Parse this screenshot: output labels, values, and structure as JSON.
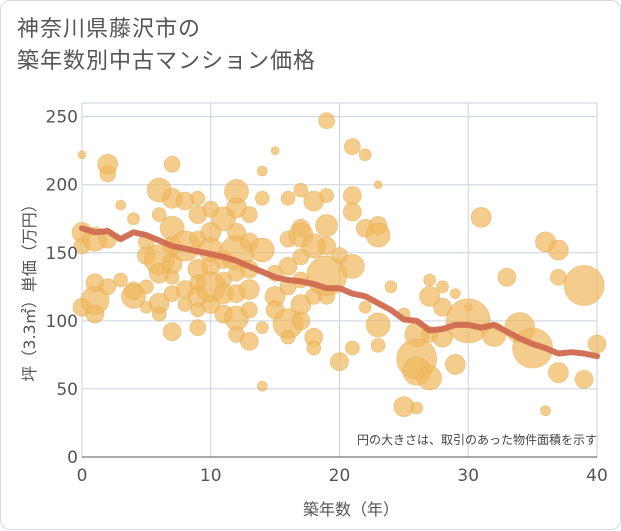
{
  "title_line1": "神奈川県藤沢市の",
  "title_line2": "築年数別中古マンション価格",
  "chart_data": {
    "type": "scatter",
    "xlabel": "築年数（年）",
    "ylabel": "坪（3.3㎡）単価（万円）",
    "xlim": [
      0,
      40
    ],
    "ylim": [
      0,
      260
    ],
    "xticks": [
      "0",
      "10",
      "20",
      "30",
      "40"
    ],
    "yticks": [
      "0",
      "50",
      "100",
      "150",
      "200",
      "250"
    ],
    "annotation": "円の大きさは、取引のあった物件面積を示す",
    "grid": true,
    "bubble_color": "#f0b860",
    "line_color": "#d06a50",
    "trend": {
      "x": [
        0,
        1,
        2,
        3,
        4,
        5,
        6,
        7,
        8,
        9,
        10,
        11,
        12,
        13,
        14,
        15,
        16,
        17,
        18,
        19,
        20,
        21,
        22,
        23,
        24,
        25,
        26,
        27,
        28,
        29,
        30,
        31,
        32,
        33,
        34,
        35,
        36,
        37,
        38,
        39,
        40
      ],
      "y": [
        168,
        165,
        166,
        160,
        165,
        163,
        159,
        155,
        153,
        151,
        149,
        147,
        144,
        140,
        136,
        132,
        130,
        129,
        127,
        124,
        124,
        120,
        118,
        113,
        108,
        101,
        100,
        93,
        94,
        97,
        97,
        95,
        97,
        92,
        87,
        83,
        80,
        76,
        77,
        76,
        74
      ]
    },
    "points": [
      {
        "x": 0,
        "y": 222,
        "s": 4
      },
      {
        "x": 0,
        "y": 165,
        "s": 10
      },
      {
        "x": 0,
        "y": 155,
        "s": 8
      },
      {
        "x": 0,
        "y": 110,
        "s": 9
      },
      {
        "x": 1,
        "y": 160,
        "s": 12
      },
      {
        "x": 1,
        "y": 128,
        "s": 9
      },
      {
        "x": 1,
        "y": 115,
        "s": 14
      },
      {
        "x": 1,
        "y": 105,
        "s": 9
      },
      {
        "x": 2,
        "y": 215,
        "s": 10
      },
      {
        "x": 2,
        "y": 208,
        "s": 8
      },
      {
        "x": 2,
        "y": 160,
        "s": 9
      },
      {
        "x": 2,
        "y": 125,
        "s": 8
      },
      {
        "x": 3,
        "y": 185,
        "s": 5
      },
      {
        "x": 3,
        "y": 130,
        "s": 7
      },
      {
        "x": 4,
        "y": 175,
        "s": 6
      },
      {
        "x": 4,
        "y": 122,
        "s": 9
      },
      {
        "x": 4,
        "y": 118,
        "s": 12
      },
      {
        "x": 5,
        "y": 158,
        "s": 8
      },
      {
        "x": 5,
        "y": 148,
        "s": 9
      },
      {
        "x": 5,
        "y": 125,
        "s": 7
      },
      {
        "x": 5,
        "y": 110,
        "s": 6
      },
      {
        "x": 6,
        "y": 196,
        "s": 12
      },
      {
        "x": 6,
        "y": 178,
        "s": 7
      },
      {
        "x": 6,
        "y": 145,
        "s": 15
      },
      {
        "x": 6,
        "y": 135,
        "s": 10
      },
      {
        "x": 6,
        "y": 113,
        "s": 10
      },
      {
        "x": 6,
        "y": 105,
        "s": 7
      },
      {
        "x": 7,
        "y": 215,
        "s": 8
      },
      {
        "x": 7,
        "y": 190,
        "s": 10
      },
      {
        "x": 7,
        "y": 168,
        "s": 12
      },
      {
        "x": 7,
        "y": 155,
        "s": 9
      },
      {
        "x": 7,
        "y": 142,
        "s": 10
      },
      {
        "x": 7,
        "y": 132,
        "s": 7
      },
      {
        "x": 7,
        "y": 120,
        "s": 8
      },
      {
        "x": 7,
        "y": 92,
        "s": 9
      },
      {
        "x": 8,
        "y": 188,
        "s": 9
      },
      {
        "x": 8,
        "y": 155,
        "s": 15
      },
      {
        "x": 8,
        "y": 123,
        "s": 9
      },
      {
        "x": 8,
        "y": 112,
        "s": 7
      },
      {
        "x": 9,
        "y": 190,
        "s": 7
      },
      {
        "x": 9,
        "y": 178,
        "s": 9
      },
      {
        "x": 9,
        "y": 160,
        "s": 8
      },
      {
        "x": 9,
        "y": 138,
        "s": 10
      },
      {
        "x": 9,
        "y": 128,
        "s": 8
      },
      {
        "x": 9,
        "y": 118,
        "s": 10
      },
      {
        "x": 9,
        "y": 108,
        "s": 7
      },
      {
        "x": 9,
        "y": 95,
        "s": 8
      },
      {
        "x": 10,
        "y": 182,
        "s": 8
      },
      {
        "x": 10,
        "y": 165,
        "s": 10
      },
      {
        "x": 10,
        "y": 152,
        "s": 12
      },
      {
        "x": 10,
        "y": 140,
        "s": 9
      },
      {
        "x": 10,
        "y": 125,
        "s": 15
      },
      {
        "x": 10,
        "y": 112,
        "s": 9
      },
      {
        "x": 11,
        "y": 175,
        "s": 12
      },
      {
        "x": 11,
        "y": 145,
        "s": 9
      },
      {
        "x": 11,
        "y": 130,
        "s": 8
      },
      {
        "x": 11,
        "y": 120,
        "s": 10
      },
      {
        "x": 11,
        "y": 105,
        "s": 9
      },
      {
        "x": 12,
        "y": 195,
        "s": 12
      },
      {
        "x": 12,
        "y": 183,
        "s": 10
      },
      {
        "x": 12,
        "y": 165,
        "s": 9
      },
      {
        "x": 12,
        "y": 150,
        "s": 17
      },
      {
        "x": 12,
        "y": 135,
        "s": 8
      },
      {
        "x": 12,
        "y": 120,
        "s": 9
      },
      {
        "x": 12,
        "y": 102,
        "s": 12
      },
      {
        "x": 12,
        "y": 90,
        "s": 8
      },
      {
        "x": 13,
        "y": 178,
        "s": 8
      },
      {
        "x": 13,
        "y": 158,
        "s": 9
      },
      {
        "x": 13,
        "y": 138,
        "s": 9
      },
      {
        "x": 13,
        "y": 123,
        "s": 10
      },
      {
        "x": 13,
        "y": 108,
        "s": 8
      },
      {
        "x": 13,
        "y": 85,
        "s": 9
      },
      {
        "x": 14,
        "y": 210,
        "s": 5
      },
      {
        "x": 14,
        "y": 190,
        "s": 7
      },
      {
        "x": 14,
        "y": 152,
        "s": 12
      },
      {
        "x": 14,
        "y": 95,
        "s": 6
      },
      {
        "x": 14,
        "y": 52,
        "s": 5
      },
      {
        "x": 15,
        "y": 225,
        "s": 4
      },
      {
        "x": 15,
        "y": 135,
        "s": 8
      },
      {
        "x": 15,
        "y": 118,
        "s": 10
      },
      {
        "x": 15,
        "y": 108,
        "s": 9
      },
      {
        "x": 16,
        "y": 190,
        "s": 7
      },
      {
        "x": 16,
        "y": 160,
        "s": 8
      },
      {
        "x": 16,
        "y": 140,
        "s": 9
      },
      {
        "x": 16,
        "y": 125,
        "s": 8
      },
      {
        "x": 16,
        "y": 98,
        "s": 15
      },
      {
        "x": 16,
        "y": 88,
        "s": 7
      },
      {
        "x": 17,
        "y": 196,
        "s": 7
      },
      {
        "x": 17,
        "y": 168,
        "s": 9
      },
      {
        "x": 17,
        "y": 163,
        "s": 12
      },
      {
        "x": 17,
        "y": 147,
        "s": 8
      },
      {
        "x": 17,
        "y": 130,
        "s": 8
      },
      {
        "x": 17,
        "y": 112,
        "s": 10
      },
      {
        "x": 17,
        "y": 100,
        "s": 9
      },
      {
        "x": 18,
        "y": 188,
        "s": 10
      },
      {
        "x": 18,
        "y": 155,
        "s": 12
      },
      {
        "x": 18,
        "y": 118,
        "s": 8
      },
      {
        "x": 18,
        "y": 88,
        "s": 9
      },
      {
        "x": 18,
        "y": 80,
        "s": 7
      },
      {
        "x": 19,
        "y": 247,
        "s": 8
      },
      {
        "x": 19,
        "y": 192,
        "s": 7
      },
      {
        "x": 19,
        "y": 170,
        "s": 11
      },
      {
        "x": 19,
        "y": 155,
        "s": 9
      },
      {
        "x": 19,
        "y": 133,
        "s": 20
      },
      {
        "x": 19,
        "y": 118,
        "s": 8
      },
      {
        "x": 20,
        "y": 148,
        "s": 8
      },
      {
        "x": 20,
        "y": 70,
        "s": 9
      },
      {
        "x": 21,
        "y": 228,
        "s": 8
      },
      {
        "x": 21,
        "y": 192,
        "s": 9
      },
      {
        "x": 21,
        "y": 180,
        "s": 9
      },
      {
        "x": 21,
        "y": 140,
        "s": 12
      },
      {
        "x": 21,
        "y": 80,
        "s": 7
      },
      {
        "x": 22,
        "y": 222,
        "s": 6
      },
      {
        "x": 22,
        "y": 168,
        "s": 9
      },
      {
        "x": 22,
        "y": 110,
        "s": 6
      },
      {
        "x": 23,
        "y": 200,
        "s": 4
      },
      {
        "x": 23,
        "y": 170,
        "s": 9
      },
      {
        "x": 23,
        "y": 163,
        "s": 12
      },
      {
        "x": 23,
        "y": 97,
        "s": 12
      },
      {
        "x": 23,
        "y": 82,
        "s": 7
      },
      {
        "x": 24,
        "y": 125,
        "s": 6
      },
      {
        "x": 25,
        "y": 105,
        "s": 6
      },
      {
        "x": 25,
        "y": 37,
        "s": 10
      },
      {
        "x": 26,
        "y": 90,
        "s": 12
      },
      {
        "x": 26,
        "y": 72,
        "s": 20
      },
      {
        "x": 26,
        "y": 63,
        "s": 14
      },
      {
        "x": 26,
        "y": 36,
        "s": 6
      },
      {
        "x": 27,
        "y": 130,
        "s": 6
      },
      {
        "x": 27,
        "y": 118,
        "s": 10
      },
      {
        "x": 27,
        "y": 90,
        "s": 8
      },
      {
        "x": 27,
        "y": 58,
        "s": 12
      },
      {
        "x": 28,
        "y": 125,
        "s": 6
      },
      {
        "x": 28,
        "y": 110,
        "s": 9
      },
      {
        "x": 28,
        "y": 88,
        "s": 10
      },
      {
        "x": 29,
        "y": 120,
        "s": 5
      },
      {
        "x": 29,
        "y": 68,
        "s": 10
      },
      {
        "x": 30,
        "y": 110,
        "s": 4
      },
      {
        "x": 30,
        "y": 100,
        "s": 22
      },
      {
        "x": 31,
        "y": 176,
        "s": 10
      },
      {
        "x": 32,
        "y": 90,
        "s": 12
      },
      {
        "x": 33,
        "y": 132,
        "s": 9
      },
      {
        "x": 34,
        "y": 95,
        "s": 15
      },
      {
        "x": 35,
        "y": 80,
        "s": 20
      },
      {
        "x": 36,
        "y": 158,
        "s": 10
      },
      {
        "x": 36,
        "y": 34,
        "s": 5
      },
      {
        "x": 37,
        "y": 152,
        "s": 10
      },
      {
        "x": 37,
        "y": 132,
        "s": 8
      },
      {
        "x": 37,
        "y": 62,
        "s": 10
      },
      {
        "x": 39,
        "y": 126,
        "s": 20
      },
      {
        "x": 39,
        "y": 57,
        "s": 9
      },
      {
        "x": 40,
        "y": 83,
        "s": 9
      }
    ]
  }
}
